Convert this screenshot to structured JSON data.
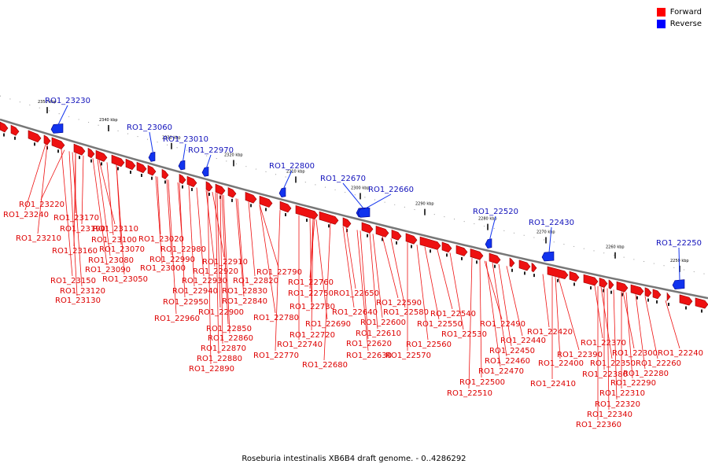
{
  "legend": {
    "forward_label": "Forward",
    "reverse_label": "Reverse",
    "forward_color": "#ff0000",
    "reverse_color": "#0000ff"
  },
  "caption": "Roseburia intestinalis XB6B4 draft genome. - 0..4286292",
  "colors": {
    "forward_fill": "#ee1111",
    "forward_shade": "#990000",
    "reverse_fill": "#1133ee",
    "reverse_shade": "#000088",
    "forward_label": "#dd0000",
    "reverse_label": "#1111bb",
    "axis": "#777777"
  },
  "scale": {
    "ticks": [
      "2350 kbp",
      "2340 kbp",
      "2330 kbp",
      "2320 kbp",
      "2310 kbp",
      "2300 kbp",
      "2290 kbp",
      "2280 kbp",
      "2270 kbp",
      "2260 kbp",
      "2250 kbp"
    ]
  },
  "reverse_genes": [
    "RO1_23230",
    "RO1_23060",
    "RO1_23010",
    "RO1_22970",
    "RO1_22800",
    "RO1_22670",
    "RO1_22660",
    "RO1_22520",
    "RO1_22430",
    "RO1_22250"
  ],
  "forward_genes": [
    "RO1_23220",
    "RO1_23240",
    "RO1_23170",
    "RO1_23190",
    "RO1_23210",
    "RO1_23110",
    "RO1_23160",
    "RO1_23100",
    "RO1_23070",
    "RO1_23020",
    "RO1_23080",
    "RO1_22980",
    "RO1_22990",
    "RO1_23090",
    "RO1_23000",
    "RO1_23150",
    "RO1_23050",
    "RO1_23120",
    "RO1_23130",
    "RO1_22910",
    "RO1_22920",
    "RO1_22930",
    "RO1_22940",
    "RO1_22950",
    "RO1_22960",
    "RO1_22820",
    "RO1_22830",
    "RO1_22840",
    "RO1_22790",
    "RO1_22900",
    "RO1_22850",
    "RO1_22860",
    "RO1_22870",
    "RO1_22880",
    "RO1_22890",
    "RO1_22780",
    "RO1_22760",
    "RO1_22750",
    "RO1_22730",
    "RO1_22690",
    "RO1_22720",
    "RO1_22740",
    "RO1_22770",
    "RO1_22680",
    "RO1_22650",
    "RO1_22640",
    "RO1_22600",
    "RO1_22610",
    "RO1_22620",
    "RO1_22630",
    "RO1_22590",
    "RO1_22580",
    "RO1_22550",
    "RO1_22560",
    "RO1_22570",
    "RO1_22540",
    "RO1_22530",
    "RO1_22490",
    "RO1_22440",
    "RO1_22450",
    "RO1_22460",
    "RO1_22470",
    "RO1_22500",
    "RO1_22510",
    "RO1_22420",
    "RO1_22390",
    "RO1_22400",
    "RO1_22410",
    "RO1_22370",
    "RO1_22350",
    "RO1_22380",
    "RO1_22300",
    "RO1_22260",
    "RO1_22240",
    "RO1_22280",
    "RO1_22290",
    "RO1_22310",
    "RO1_22320",
    "RO1_22340",
    "RO1_22360"
  ]
}
